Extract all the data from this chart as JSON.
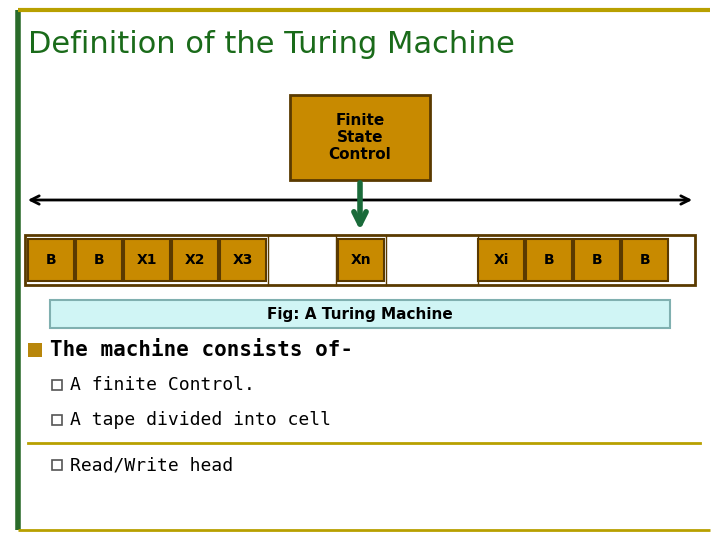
{
  "title": "Definition of the Turing Machine",
  "title_color": "#1a6b1a",
  "title_fontsize": 22,
  "bg_color": "#ffffff",
  "border_top_color": "#b8a000",
  "border_left_color": "#2a6b2a",
  "fsc_box_color": "#c88a00",
  "fsc_box_edge": "#5a3a00",
  "fsc_text": "Finite\nState\nControl",
  "tape_cell_color": "#c88a00",
  "tape_cell_edge": "#5a3a00",
  "tape_border_color": "#5a3a00",
  "arrow_color": "#000000",
  "down_arrow_color": "#1a6b3a",
  "fig_caption": "Fig: A Turing Machine",
  "fig_caption_bg": "#d0f5f5",
  "fig_caption_border": "#80b0b0",
  "bullet_color": "#b8860b",
  "main_bullet": "The machine consists of-",
  "sub_bullets": [
    "A finite Control.",
    "A tape divided into cell",
    "Read/Write head"
  ],
  "main_bullet_fontsize": 15,
  "sub_bullet_fontsize": 13,
  "separator_color": "#b8a000"
}
